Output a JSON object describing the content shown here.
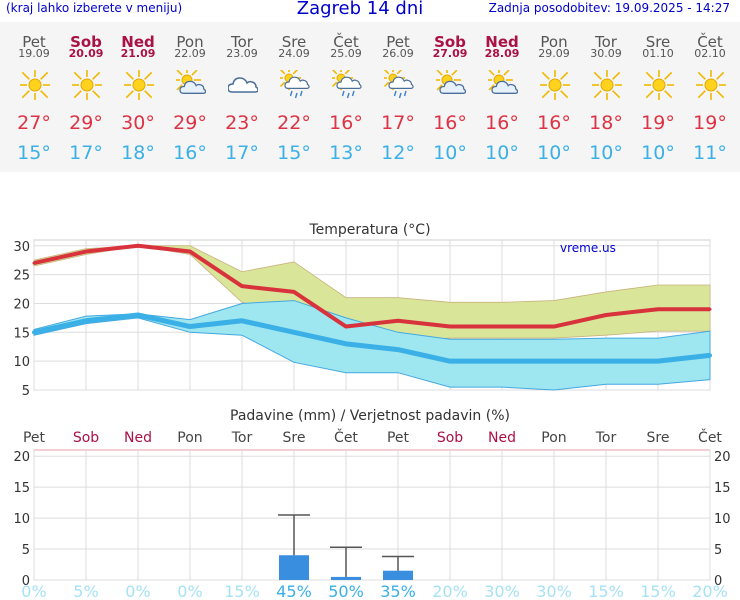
{
  "header": {
    "city_hint": "(kraj lahko izberete v meniju)",
    "title": "Zagreb 14 dni",
    "updated": "Zadnja posodobitev: 19.09.2025 - 14:27"
  },
  "days": [
    {
      "name": "Pet",
      "date": "19.09",
      "weekend": false,
      "icon": "sun-icon",
      "max": "27°",
      "min": "15°",
      "pop": "0%"
    },
    {
      "name": "Sob",
      "date": "20.09",
      "weekend": true,
      "icon": "sun-icon",
      "max": "29°",
      "min": "17°",
      "pop": "5%"
    },
    {
      "name": "Ned",
      "date": "21.09",
      "weekend": true,
      "icon": "sun-icon",
      "max": "30°",
      "min": "18°",
      "pop": "0%"
    },
    {
      "name": "Pon",
      "date": "22.09",
      "weekend": false,
      "icon": "partly-cloudy-icon",
      "max": "29°",
      "min": "16°",
      "pop": "0%"
    },
    {
      "name": "Tor",
      "date": "23.09",
      "weekend": false,
      "icon": "cloud-icon",
      "max": "23°",
      "min": "17°",
      "pop": "15%"
    },
    {
      "name": "Sre",
      "date": "24.09",
      "weekend": false,
      "icon": "sun-cloud-rain-icon",
      "max": "22°",
      "min": "15°",
      "pop": "45%"
    },
    {
      "name": "Čet",
      "date": "25.09",
      "weekend": false,
      "icon": "sun-cloud-rain-icon",
      "max": "16°",
      "min": "13°",
      "pop": "50%"
    },
    {
      "name": "Pet",
      "date": "26.09",
      "weekend": false,
      "icon": "sun-cloud-rain-icon",
      "max": "17°",
      "min": "12°",
      "pop": "35%"
    },
    {
      "name": "Sob",
      "date": "27.09",
      "weekend": true,
      "icon": "partly-cloudy-icon",
      "max": "16°",
      "min": "10°",
      "pop": "20%"
    },
    {
      "name": "Ned",
      "date": "28.09",
      "weekend": true,
      "icon": "partly-cloudy-icon",
      "max": "16°",
      "min": "10°",
      "pop": "30%"
    },
    {
      "name": "Pon",
      "date": "29.09",
      "weekend": false,
      "icon": "sun-icon",
      "max": "16°",
      "min": "10°",
      "pop": "30%"
    },
    {
      "name": "Tor",
      "date": "30.09",
      "weekend": false,
      "icon": "sun-icon",
      "max": "18°",
      "min": "10°",
      "pop": "15%"
    },
    {
      "name": "Sre",
      "date": "01.10",
      "weekend": false,
      "icon": "sun-icon",
      "max": "19°",
      "min": "10°",
      "pop": "15%"
    },
    {
      "name": "Čet",
      "date": "02.10",
      "weekend": false,
      "icon": "sun-icon",
      "max": "19°",
      "min": "11°",
      "pop": "20%"
    }
  ],
  "colors": {
    "max_line": "#d8323c",
    "min_line": "#3ab0e6",
    "max_band": "#d9e69a",
    "min_band": "#9ee6f0",
    "overlap_band": "#86d49a",
    "bar": "#3a8ee0",
    "weekend": "#aa1144",
    "weekday": "#555555",
    "pop_high": "#3ab0e6",
    "pop_low": "#a6e2f4",
    "header": "#0000cc"
  },
  "chart_data": [
    {
      "type": "line",
      "title": "Temperatura (°C)",
      "watermark": "vreme.us",
      "x": [
        "19.09",
        "20.09",
        "21.09",
        "22.09",
        "23.09",
        "24.09",
        "25.09",
        "26.09",
        "27.09",
        "28.09",
        "29.09",
        "30.09",
        "01.10",
        "02.10"
      ],
      "ylim": [
        5,
        31
      ],
      "yticks": [
        5,
        10,
        15,
        20,
        25,
        30
      ],
      "grid": true,
      "series": [
        {
          "role": "max",
          "values": [
            27,
            29,
            30,
            29,
            23,
            22,
            16,
            17,
            16,
            16,
            16,
            18,
            19,
            19
          ],
          "band_high": [
            27.5,
            29.5,
            30,
            30,
            25.5,
            27.2,
            21,
            21,
            20.2,
            20.2,
            20.5,
            22,
            23.2,
            23.2
          ],
          "band_low": [
            26.5,
            28.5,
            30,
            28.5,
            20.2,
            17.5,
            11.5,
            13.5,
            14,
            14,
            14,
            14.5,
            15.2,
            15.2
          ]
        },
        {
          "role": "min",
          "values": [
            15,
            17,
            18,
            16,
            17,
            15,
            13,
            12,
            10,
            10,
            10,
            10,
            10,
            11
          ],
          "band_high": [
            15.5,
            17.8,
            18.2,
            17.2,
            20,
            20.5,
            17.5,
            15,
            13.8,
            13.8,
            13.8,
            14,
            14,
            15.2
          ],
          "band_low": [
            14.5,
            16.5,
            17.5,
            15,
            14.5,
            9.8,
            8,
            8,
            5.5,
            5.5,
            5,
            6,
            6,
            6.8
          ]
        }
      ]
    },
    {
      "type": "bar",
      "title": "Padavine (mm) / Verjetnost padavin (%)",
      "x": [
        "19.09",
        "20.09",
        "21.09",
        "22.09",
        "23.09",
        "24.09",
        "25.09",
        "26.09",
        "27.09",
        "28.09",
        "29.09",
        "30.09",
        "01.10",
        "02.10"
      ],
      "ylim": [
        0,
        21
      ],
      "yticks": [
        0,
        5,
        10,
        15,
        20
      ],
      "values": [
        0,
        0,
        0,
        0,
        0,
        4,
        0.5,
        1.5,
        0,
        0,
        0,
        0,
        0,
        0
      ],
      "error_high": [
        null,
        null,
        null,
        null,
        null,
        10.5,
        5.3,
        3.8,
        null,
        null,
        null,
        null,
        null,
        null
      ],
      "probability": [
        "0%",
        "5%",
        "0%",
        "0%",
        "15%",
        "45%",
        "50%",
        "35%",
        "20%",
        "30%",
        "30%",
        "15%",
        "15%",
        "20%"
      ]
    }
  ]
}
